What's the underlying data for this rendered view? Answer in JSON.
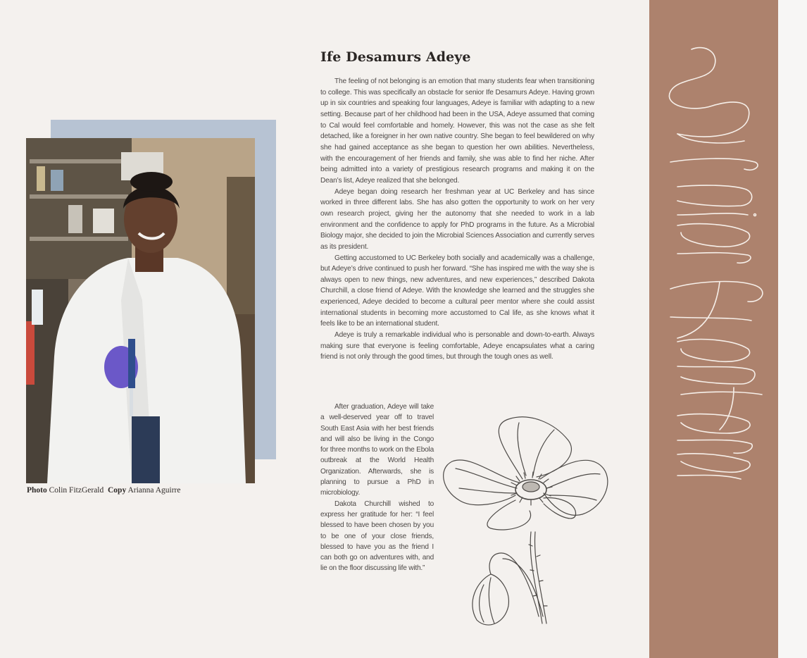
{
  "article": {
    "title": "Ife Desamurs Adeye",
    "paragraphs": [
      "The feeling of not belonging is an emotion that many students fear when transitioning to college. This was specifically an obstacle for senior Ife Desamurs Adeye. Having grown up in six countries and speaking four languages, Adeye is familiar with adapting to a new setting. Because part of her childhood had been in the USA, Adeye assumed that coming to Cal would feel comfortable and homely. However, this was not the case as she felt detached, like a foreigner in her own native country. She began to feel bewildered on why she had gained acceptance as she began to question her own abilities. Nevertheless, with the encouragement of her friends and family, she was able to find her niche. After being admitted into a variety of prestigious research programs and making it on the Dean’s list, Adeye realized that she belonged.",
      "Adeye began doing research her freshman year at UC Berkeley and has since worked in three different labs. She has also gotten the opportunity to work on her very own research project, giving her the autonomy that she needed to work in a lab environment and the confidence to apply for PhD programs in the future. As a Microbial Biology major, she decided to join the Microbial Sciences Association and currently serves as its president.",
      "Getting accustomed to UC Berkeley both socially and academically was a challenge, but Adeye’s drive continued to push her forward. “She has inspired me with the way she is always open to new things, new adventures, and new experiences,” described Dakota Churchill, a close friend of Adeye. With the knowledge she learned and the struggles she experienced, Adeye decided to become a cultural peer mentor where she could assist international students in becoming more accustomed to Cal life, as she knows what it feels like to be an international student.",
      "Adeye is truly a remarkable individual who is personable and down-to-earth. Always making sure that everyone is feeling comfortable, Adeye encapsulates what a caring friend is not only through the good times, but through the tough ones as well."
    ],
    "narrow_paragraphs": [
      "After graduation, Adeye will take a well-deserved year off to travel South East Asia with her best friends and will also be living in the Congo for three months to work on the Ebola outbreak at the World Health Organization. Afterwards, she is planning to pursue a PhD in microbiology.",
      "Dakota Churchill wished to express her gratitude for her: “I feel blessed to have been chosen by you to be one of your close friends, blessed to have you as the friend I can both go on adventures with, and lie on the floor discussing life with.”"
    ]
  },
  "credits": {
    "photo_label": "Photo",
    "photo_name": "Colin FitzGerald",
    "copy_label": "Copy",
    "copy_name": "Arianna Aguirre"
  },
  "section": {
    "title": "Senior Features",
    "band_color": "#ad826d"
  },
  "decor": {
    "illustration": "poppy-flower-illustration",
    "photo_subject": "student-in-lab-coat-holding-pipette"
  }
}
